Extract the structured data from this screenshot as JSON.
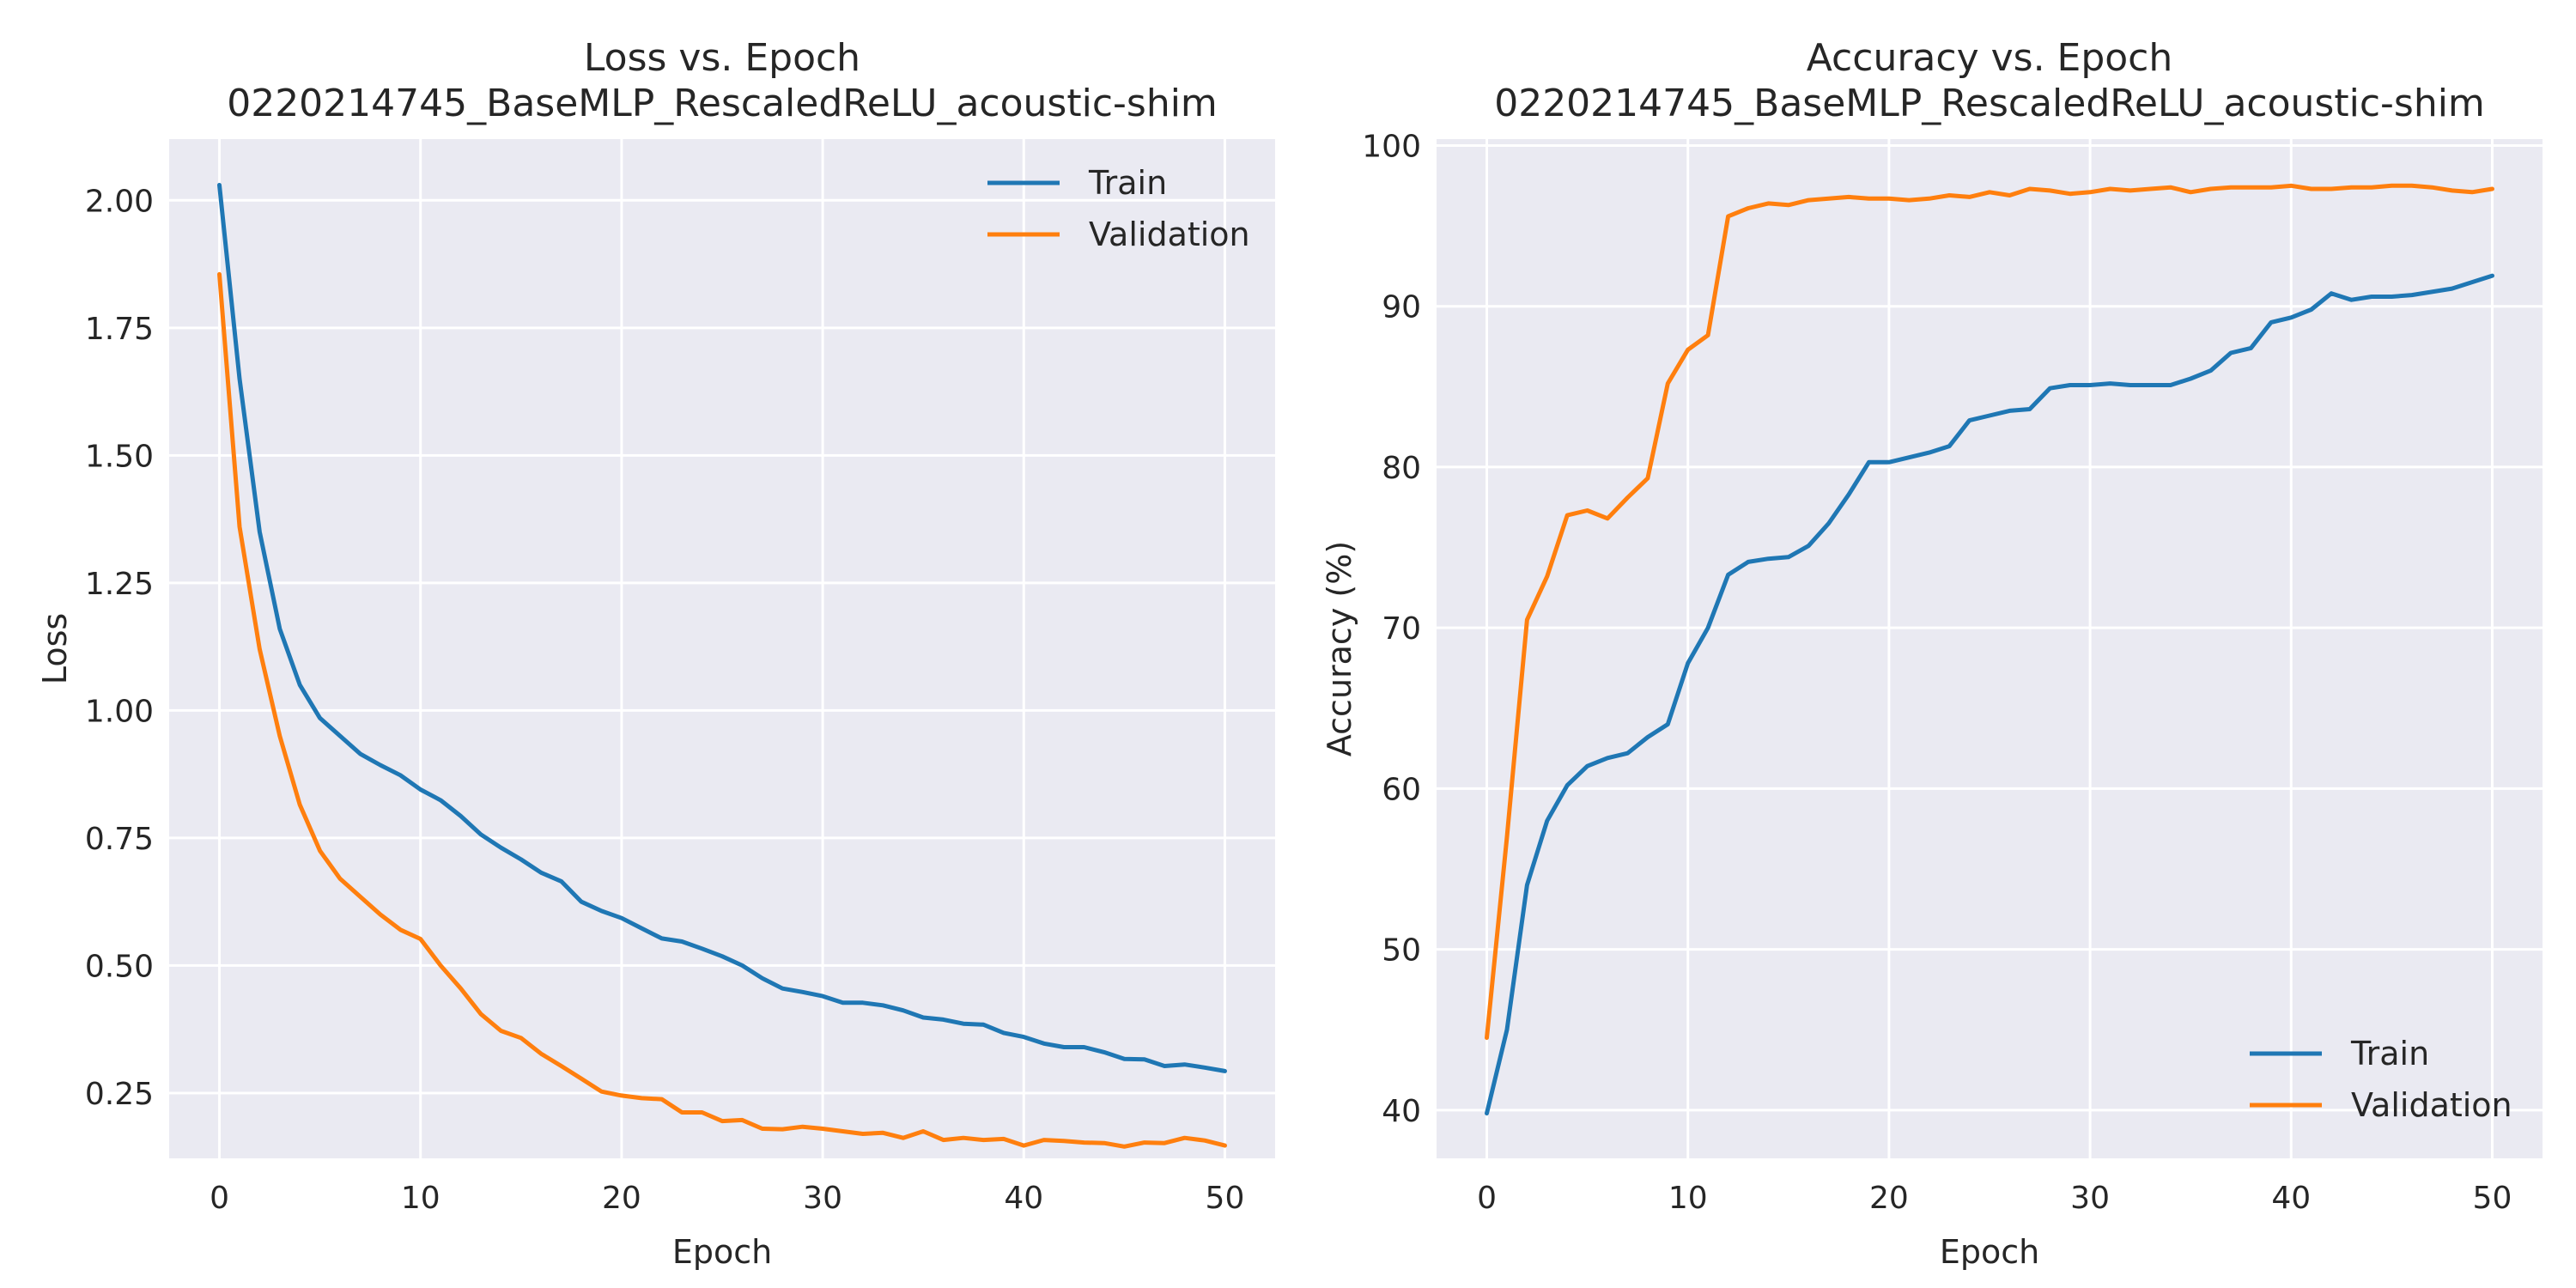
{
  "chart_data": [
    {
      "type": "line",
      "title": "Loss vs. Epoch",
      "subtitle": "0220214745_BaseMLP_RescaledReLU_acoustic-shim",
      "xlabel": "Epoch",
      "ylabel": "Loss",
      "xlim": [
        -2.5,
        52.5
      ],
      "ylim": [
        0.122,
        2.12
      ],
      "xticks": [
        0,
        10,
        20,
        30,
        40,
        50
      ],
      "xtick_labels": [
        "0",
        "10",
        "20",
        "30",
        "40",
        "50"
      ],
      "yticks": [
        0.25,
        0.5,
        0.75,
        1.0,
        1.25,
        1.5,
        1.75,
        2.0
      ],
      "ytick_labels": [
        "0.25",
        "0.50",
        "0.75",
        "1.00",
        "1.25",
        "1.50",
        "1.75",
        "2.00"
      ],
      "grid": true,
      "legend": "top-right",
      "x": [
        0,
        1,
        2,
        3,
        4,
        5,
        6,
        7,
        8,
        9,
        10,
        11,
        12,
        13,
        14,
        15,
        16,
        17,
        18,
        19,
        20,
        21,
        22,
        23,
        24,
        25,
        26,
        27,
        28,
        29,
        30,
        31,
        32,
        33,
        34,
        35,
        36,
        37,
        38,
        39,
        40,
        41,
        42,
        43,
        44,
        45,
        46,
        47,
        48,
        49,
        50
      ],
      "series": [
        {
          "name": "Train",
          "color": "#1f77b4",
          "values": [
            2.03,
            1.65,
            1.35,
            1.16,
            1.05,
            0.985,
            0.95,
            0.915,
            0.893,
            0.873,
            0.845,
            0.824,
            0.793,
            0.757,
            0.731,
            0.708,
            0.682,
            0.665,
            0.625,
            0.607,
            0.593,
            0.573,
            0.553,
            0.547,
            0.533,
            0.518,
            0.5,
            0.475,
            0.455,
            0.448,
            0.44,
            0.427,
            0.427,
            0.422,
            0.412,
            0.398,
            0.394,
            0.386,
            0.384,
            0.368,
            0.36,
            0.347,
            0.34,
            0.34,
            0.33,
            0.317,
            0.316,
            0.303,
            0.306,
            0.3,
            0.293
          ]
        },
        {
          "name": "Validation",
          "color": "#ff7f0e",
          "values": [
            1.855,
            1.36,
            1.12,
            0.95,
            0.815,
            0.725,
            0.67,
            0.635,
            0.6,
            0.57,
            0.552,
            0.5,
            0.455,
            0.405,
            0.372,
            0.358,
            0.327,
            0.303,
            0.278,
            0.253,
            0.245,
            0.24,
            0.238,
            0.212,
            0.212,
            0.195,
            0.197,
            0.18,
            0.179,
            0.184,
            0.18,
            0.175,
            0.17,
            0.172,
            0.162,
            0.175,
            0.158,
            0.162,
            0.158,
            0.16,
            0.147,
            0.158,
            0.156,
            0.153,
            0.152,
            0.145,
            0.153,
            0.152,
            0.162,
            0.157,
            0.147
          ]
        }
      ]
    },
    {
      "type": "line",
      "title": "Accuracy vs. Epoch",
      "subtitle": "0220214745_BaseMLP_RescaledReLU_acoustic-shim",
      "xlabel": "Epoch",
      "ylabel": "Accuracy (%)",
      "xlim": [
        -2.5,
        52.5
      ],
      "ylim": [
        37,
        100.4
      ],
      "xticks": [
        0,
        10,
        20,
        30,
        40,
        50
      ],
      "xtick_labels": [
        "0",
        "10",
        "20",
        "30",
        "40",
        "50"
      ],
      "yticks": [
        40,
        50,
        60,
        70,
        80,
        90,
        100
      ],
      "ytick_labels": [
        "40",
        "50",
        "60",
        "70",
        "80",
        "90",
        "100"
      ],
      "grid": true,
      "legend": "lower-right",
      "x": [
        0,
        1,
        2,
        3,
        4,
        5,
        6,
        7,
        8,
        9,
        10,
        11,
        12,
        13,
        14,
        15,
        16,
        17,
        18,
        19,
        20,
        21,
        22,
        23,
        24,
        25,
        26,
        27,
        28,
        29,
        30,
        31,
        32,
        33,
        34,
        35,
        36,
        37,
        38,
        39,
        40,
        41,
        42,
        43,
        44,
        45,
        46,
        47,
        48,
        49,
        50
      ],
      "series": [
        {
          "name": "Train",
          "color": "#1f77b4",
          "values": [
            39.8,
            45,
            54,
            58,
            60.2,
            61.4,
            61.9,
            62.2,
            63.2,
            64,
            67.8,
            70,
            73.3,
            74.1,
            74.3,
            74.4,
            75.1,
            76.5,
            78.3,
            80.3,
            80.3,
            80.6,
            80.9,
            81.3,
            82.9,
            83.2,
            83.5,
            83.6,
            84.9,
            85.1,
            85.1,
            85.2,
            85.1,
            85.1,
            85.1,
            85.5,
            86,
            87.1,
            87.4,
            89,
            89.3,
            89.8,
            90.8,
            90.4,
            90.6,
            90.6,
            90.7,
            90.9,
            91.1,
            91.5,
            91.9
          ]
        },
        {
          "name": "Validation",
          "color": "#ff7f0e",
          "values": [
            44.5,
            57,
            70.5,
            73.2,
            77,
            77.3,
            76.8,
            78.1,
            79.3,
            85.2,
            87.3,
            88.2,
            95.6,
            96.1,
            96.4,
            96.3,
            96.6,
            96.7,
            96.8,
            96.7,
            96.7,
            96.6,
            96.7,
            96.9,
            96.8,
            97.1,
            96.9,
            97.3,
            97.2,
            97,
            97.1,
            97.3,
            97.2,
            97.3,
            97.4,
            97.1,
            97.3,
            97.4,
            97.4,
            97.4,
            97.5,
            97.3,
            97.3,
            97.4,
            97.4,
            97.5,
            97.5,
            97.4,
            97.2,
            97.1,
            97.3
          ]
        }
      ]
    }
  ]
}
